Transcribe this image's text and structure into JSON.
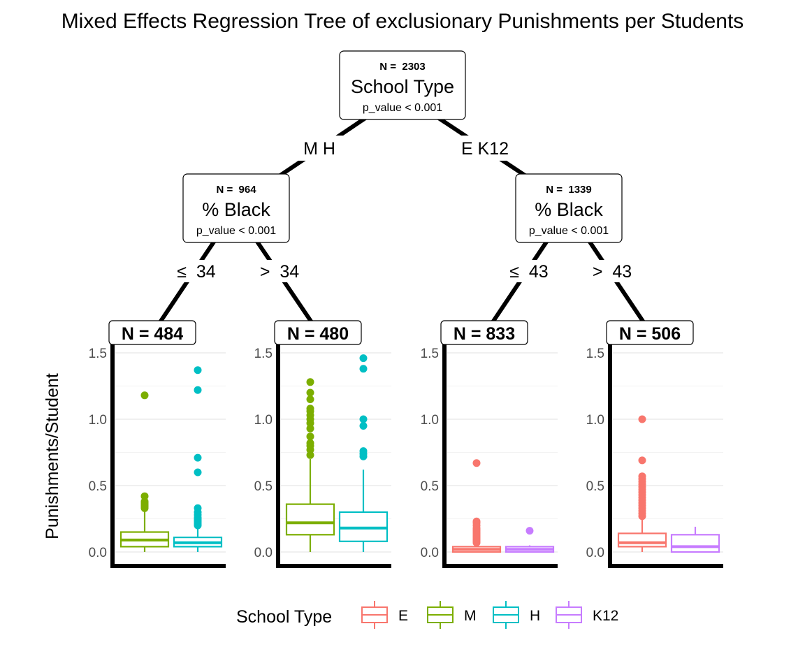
{
  "chart_data": {
    "type": "regression-tree-boxplot",
    "title": "Mixed Effects Regression Tree of exclusionary Punishments per Students",
    "ylabel": "Punishments/Student",
    "ylim": [
      0,
      1.5
    ],
    "yticks": [
      "0.0",
      "0.5",
      "1.0",
      "1.5"
    ],
    "legend": {
      "title": "School Type",
      "placement": "bottom",
      "items": [
        {
          "key": "E",
          "label": "E",
          "color": "#F8766D"
        },
        {
          "key": "M",
          "label": "M",
          "color": "#7CAE00"
        },
        {
          "key": "H",
          "label": "H",
          "color": "#00BFC4"
        },
        {
          "key": "K12",
          "label": "K12",
          "color": "#C77CFF"
        }
      ]
    },
    "nodes": {
      "root": {
        "n_label": "N =  2303",
        "variable": "School Type",
        "p_value": "p_value < 0.001"
      },
      "left": {
        "n_label": "N =  964",
        "variable": "% Black",
        "p_value": "p_value < 0.001"
      },
      "right": {
        "n_label": "N =  1339",
        "variable": "% Black",
        "p_value": "p_value < 0.001"
      }
    },
    "edges": {
      "root_left": "M H",
      "root_right": "E K12",
      "left_left": "≤  34",
      "left_right": ">  34",
      "right_left": "≤  43",
      "right_right": ">  43"
    },
    "leaves": [
      {
        "n_label": "N = 484",
        "boxes": [
          {
            "group": "M",
            "min": 0.0,
            "q1": 0.04,
            "median": 0.09,
            "q3": 0.15,
            "max": 0.31,
            "outliers": [
              0.33,
              0.34,
              0.35,
              0.36,
              0.37,
              0.38,
              0.42,
              1.18
            ]
          },
          {
            "group": "H",
            "min": 0.0,
            "q1": 0.04,
            "median": 0.07,
            "q3": 0.11,
            "max": 0.18,
            "outliers": [
              0.2,
              0.21,
              0.22,
              0.23,
              0.24,
              0.25,
              0.26,
              0.28,
              0.3,
              0.33,
              0.6,
              0.71,
              1.22,
              1.37
            ]
          }
        ]
      },
      {
        "n_label": "N = 480",
        "boxes": [
          {
            "group": "M",
            "min": 0.0,
            "q1": 0.13,
            "median": 0.22,
            "q3": 0.36,
            "max": 0.7,
            "outliers": [
              0.73,
              0.77,
              0.8,
              0.82,
              0.87,
              0.93,
              0.97,
              1.0,
              1.03,
              1.06,
              1.08,
              1.15,
              1.2,
              1.28
            ]
          },
          {
            "group": "H",
            "min": 0.0,
            "q1": 0.08,
            "median": 0.18,
            "q3": 0.3,
            "max": 0.62,
            "outliers": [
              0.72,
              0.74,
              0.76,
              0.95,
              1.0,
              1.38,
              1.46
            ]
          }
        ]
      },
      {
        "n_label": "N = 833",
        "boxes": [
          {
            "group": "E",
            "min": 0.0,
            "q1": 0.0,
            "median": 0.02,
            "q3": 0.04,
            "max": 0.06,
            "outliers": [
              0.07,
              0.08,
              0.09,
              0.1,
              0.11,
              0.12,
              0.13,
              0.14,
              0.15,
              0.16,
              0.17,
              0.18,
              0.2,
              0.22,
              0.23,
              0.67
            ]
          },
          {
            "group": "K12",
            "min": 0.0,
            "q1": 0.0,
            "median": 0.02,
            "q3": 0.04,
            "max": 0.05,
            "outliers": [
              0.16
            ]
          }
        ]
      },
      {
        "n_label": "N = 506",
        "boxes": [
          {
            "group": "E",
            "min": 0.0,
            "q1": 0.04,
            "median": 0.07,
            "q3": 0.14,
            "max": 0.25,
            "outliers": [
              0.27,
              0.29,
              0.31,
              0.33,
              0.35,
              0.37,
              0.39,
              0.41,
              0.43,
              0.45,
              0.47,
              0.49,
              0.51,
              0.53,
              0.55,
              0.57,
              0.69,
              1.0
            ]
          },
          {
            "group": "K12",
            "min": 0.0,
            "q1": 0.0,
            "median": 0.04,
            "q3": 0.13,
            "max": 0.19,
            "outliers": []
          }
        ]
      }
    ]
  }
}
